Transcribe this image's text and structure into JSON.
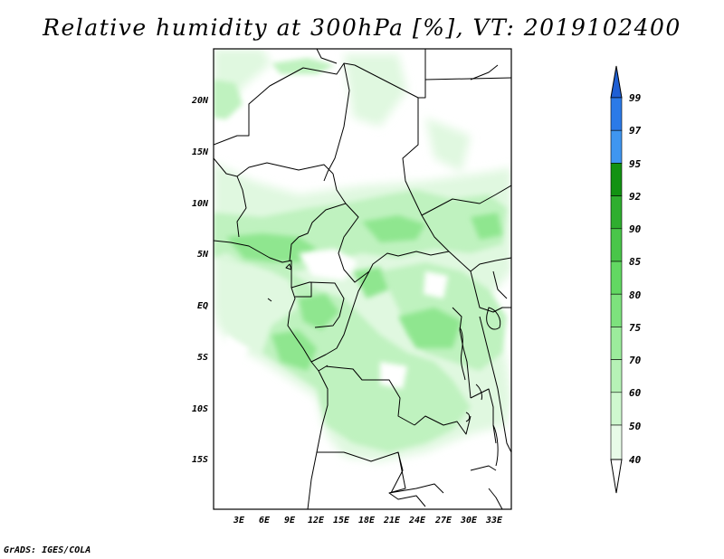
{
  "title": "Relative humidity at 300hPa [%], VT: 2019102400",
  "credit": "GrADS: IGES/COLA",
  "map": {
    "lat_labels": [
      "20N",
      "15N",
      "10N",
      "5N",
      "EQ",
      "5S",
      "10S",
      "15S"
    ],
    "lon_labels": [
      "3E",
      "6E",
      "9E",
      "12E",
      "15E",
      "18E",
      "21E",
      "24E",
      "27E",
      "30E",
      "33E"
    ],
    "extent": {
      "lon_min": 0,
      "lon_max": 35,
      "lat_min": -20,
      "lat_max": 25
    }
  },
  "colorbar": {
    "levels": [
      "99",
      "97",
      "95",
      "92",
      "90",
      "85",
      "80",
      "75",
      "70",
      "60",
      "50",
      "40"
    ],
    "colors": {
      "99": "#1f5fd4",
      "97": "#2b7ae8",
      "95": "#3f96f0",
      "92": "#129212",
      "90": "#2fae2f",
      "85": "#49c649",
      "80": "#62d862",
      "75": "#7de27d",
      "70": "#9cec9c",
      "60": "#b6f2b6",
      "50": "#cff8cf",
      "40": "#e8fbe8"
    }
  }
}
